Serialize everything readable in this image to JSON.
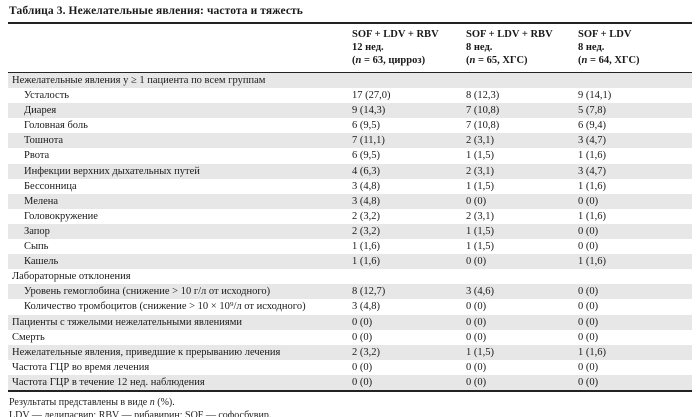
{
  "colors": {
    "stripe": "#e7e7e7",
    "border": "#232323",
    "text": "#1a1a1a"
  },
  "title": "Таблица 3. Нежелательные явления: частота и тяжесть",
  "table": {
    "columns": [
      {
        "group": "SOF + LDV + RBV",
        "duration": "12 нед.",
        "n_prefix": "(",
        "n_var": "n",
        "n_suffix": " = 63, цирроз)"
      },
      {
        "group": "SOF + LDV + RBV",
        "duration": "8 нед.",
        "n_prefix": "(",
        "n_var": "n",
        "n_suffix": " = 65, ХГС)"
      },
      {
        "group": "SOF + LDV",
        "duration": "8 нед.",
        "n_prefix": "(",
        "n_var": "n",
        "n_suffix": " = 64, ХГС)"
      }
    ],
    "rows": [
      {
        "label": "Нежелательные явления у ≥ 1 пациента по всем группам",
        "indent": 0,
        "values": [
          "",
          "",
          ""
        ]
      },
      {
        "label": "Усталость",
        "indent": 1,
        "values": [
          "17 (27,0)",
          "8 (12,3)",
          "9 (14,1)"
        ]
      },
      {
        "label": "Диарея",
        "indent": 1,
        "values": [
          "9 (14,3)",
          "7 (10,8)",
          "5 (7,8)"
        ]
      },
      {
        "label": "Головная боль",
        "indent": 1,
        "values": [
          "6 (9,5)",
          "7 (10,8)",
          "6 (9,4)"
        ]
      },
      {
        "label": "Тошнота",
        "indent": 1,
        "values": [
          "7 (11,1)",
          "2 (3,1)",
          "3 (4,7)"
        ]
      },
      {
        "label": "Рвота",
        "indent": 1,
        "values": [
          "6 (9,5)",
          "1 (1,5)",
          "1 (1,6)"
        ]
      },
      {
        "label": "Инфекции верхних дыхательных путей",
        "indent": 1,
        "values": [
          "4 (6,3)",
          "2 (3,1)",
          "3 (4,7)"
        ]
      },
      {
        "label": "Бессонница",
        "indent": 1,
        "values": [
          "3 (4,8)",
          "1 (1,5)",
          "1 (1,6)"
        ]
      },
      {
        "label": "Мелена",
        "indent": 1,
        "values": [
          "3 (4,8)",
          "0 (0)",
          "0 (0)"
        ]
      },
      {
        "label": "Головокружение",
        "indent": 1,
        "values": [
          "2 (3,2)",
          "2 (3,1)",
          "1 (1,6)"
        ]
      },
      {
        "label": "Запор",
        "indent": 1,
        "values": [
          "2 (3,2)",
          "1 (1,5)",
          "0 (0)"
        ]
      },
      {
        "label": "Сыпь",
        "indent": 1,
        "values": [
          "1 (1,6)",
          "1 (1,5)",
          "0 (0)"
        ]
      },
      {
        "label": "Кашель",
        "indent": 1,
        "values": [
          "1 (1,6)",
          "0 (0)",
          "1 (1,6)"
        ]
      },
      {
        "label": "Лабораторные отклонения",
        "indent": 0,
        "values": [
          "",
          "",
          ""
        ]
      },
      {
        "label": "Уровень гемоглобина (снижение > 10 г/л от исходного)",
        "indent": 1,
        "values": [
          "8 (12,7)",
          "3 (4,6)",
          "0 (0)"
        ]
      },
      {
        "label": "Количество тромбоцитов (снижение > 10 × 10⁹/л от исходного)",
        "indent": 1,
        "values": [
          "3 (4,8)",
          "0 (0)",
          "0 (0)"
        ]
      },
      {
        "label": "Пациенты с тяжелыми нежелательными явлениями",
        "indent": 0,
        "values": [
          "0 (0)",
          "0 (0)",
          "0 (0)"
        ]
      },
      {
        "label": "Смерть",
        "indent": 0,
        "values": [
          "0 (0)",
          "0 (0)",
          "0 (0)"
        ]
      },
      {
        "label": "Нежелательные явления, приведшие к прерыванию лечения",
        "indent": 0,
        "values": [
          "2 (3,2)",
          "1 (1,5)",
          "1 (1,6)"
        ]
      },
      {
        "label": "Частота ГЦР во время лечения",
        "indent": 0,
        "values": [
          "0 (0)",
          "0 (0)",
          "0 (0)"
        ]
      },
      {
        "label": "Частота ГЦР в течение 12 нед. наблюдения",
        "indent": 0,
        "values": [
          "0 (0)",
          "0 (0)",
          "0 (0)"
        ]
      }
    ]
  },
  "footnotes": {
    "line1_prefix": "Результаты представлены в виде ",
    "line1_var": "n",
    "line1_suffix": " (%).",
    "line2": "LDV — ледипасвир; RBV — рибавирин; SOF — софосбувир."
  }
}
